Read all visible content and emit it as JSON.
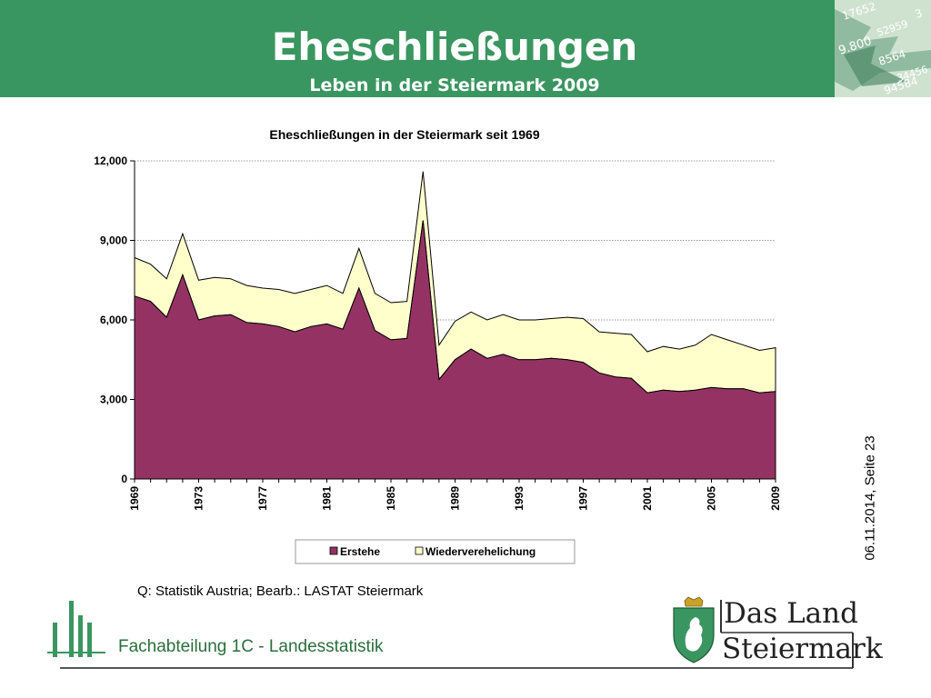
{
  "header": {
    "title": "Eheschließungen",
    "subtitle": "Leben in der Steiermark 2009",
    "background": "#3a9660",
    "art_digits": [
      "17652",
      "52959",
      "9.800",
      "8564",
      "34456",
      "94584",
      "3"
    ]
  },
  "side_label": "06.11.2014, Seite 23",
  "source": "Q: Statistik Austria; Bearb.: LASTAT Steiermark",
  "footer": {
    "department": "Fachabteilung 1C -  Landesstatistik",
    "brand_line1": "Das Land",
    "brand_line2": "Steiermark"
  },
  "colors": {
    "erstehe": "#943363",
    "wiederverehelichung": "#ffffcc",
    "brand_green": "#3a9660"
  },
  "chart_data": {
    "type": "area",
    "stacked": true,
    "title": "Eheschließungen in der Steiermark seit 1969",
    "xlabel": "",
    "ylabel": "",
    "ylim": [
      0,
      12000
    ],
    "y_ticks": [
      "0",
      "3,000",
      "6,000",
      "9,000",
      "12,000"
    ],
    "x_tick_labels": [
      "1969",
      "1973",
      "1977",
      "1981",
      "1985",
      "1989",
      "1993",
      "1997",
      "2001",
      "2005",
      "2009"
    ],
    "grid": "horizontal dotted",
    "legend_position": "bottom",
    "x": [
      1969,
      1970,
      1971,
      1972,
      1973,
      1974,
      1975,
      1976,
      1977,
      1978,
      1979,
      1980,
      1981,
      1982,
      1983,
      1984,
      1985,
      1986,
      1987,
      1988,
      1989,
      1990,
      1991,
      1992,
      1993,
      1994,
      1995,
      1996,
      1997,
      1998,
      1999,
      2000,
      2001,
      2002,
      2003,
      2004,
      2005,
      2006,
      2007,
      2008,
      2009
    ],
    "series": [
      {
        "name": "Erstehe",
        "values": [
          6900,
          6700,
          6100,
          7700,
          6000,
          6150,
          6200,
          5900,
          5850,
          5750,
          5550,
          5750,
          5850,
          5650,
          7200,
          5600,
          5250,
          5300,
          9750,
          3750,
          4500,
          4900,
          4550,
          4700,
          4500,
          4500,
          4550,
          4500,
          4400,
          4000,
          3850,
          3800,
          3250,
          3350,
          3300,
          3350,
          3450,
          3400,
          3400,
          3250,
          3300
        ]
      },
      {
        "name": "Wiederverehelichung",
        "values": [
          1450,
          1400,
          1450,
          1550,
          1500,
          1450,
          1350,
          1400,
          1350,
          1400,
          1450,
          1400,
          1450,
          1350,
          1500,
          1400,
          1400,
          1400,
          1850,
          1300,
          1450,
          1400,
          1450,
          1500,
          1500,
          1500,
          1500,
          1600,
          1650,
          1550,
          1650,
          1650,
          1550,
          1650,
          1600,
          1700,
          2000,
          1850,
          1650,
          1600,
          1650
        ]
      }
    ]
  }
}
